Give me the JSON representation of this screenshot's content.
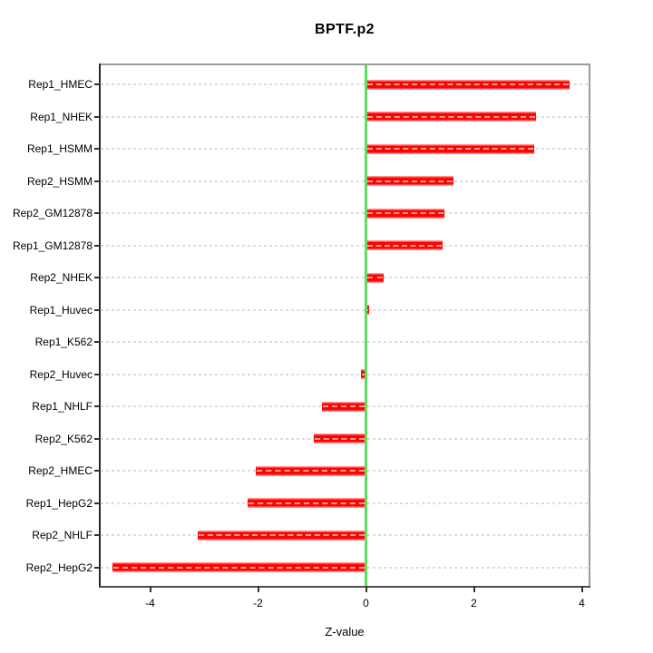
{
  "figure": {
    "title": "BPTF.p2",
    "xlabel": "Z-value"
  },
  "chart_data": {
    "type": "bar",
    "orientation": "horizontal",
    "title": "BPTF.p2",
    "xlabel": "Z-value",
    "ylabel": "",
    "legend": "none",
    "grid": "horizontal-dashed",
    "categories": [
      "Rep1_HMEC",
      "Rep1_NHEK",
      "Rep1_HSMM",
      "Rep2_HSMM",
      "Rep2_GM12878",
      "Rep1_GM12878",
      "Rep2_NHEK",
      "Rep1_Huvec",
      "Rep1_K562",
      "Rep2_Huvec",
      "Rep1_NHLF",
      "Rep2_K562",
      "Rep2_HMEC",
      "Rep1_HepG2",
      "Rep2_NHLF",
      "Rep2_HepG2"
    ],
    "values": [
      3.78,
      3.15,
      3.11,
      1.62,
      1.45,
      1.42,
      0.32,
      0.06,
      0.0,
      -0.1,
      -0.81,
      -0.96,
      -2.05,
      -2.2,
      -3.12,
      -4.7
    ],
    "x_ticks": [
      -4,
      -2,
      0,
      2,
      4
    ],
    "x_tick_labels": [
      "-4",
      "-2",
      "0",
      "2",
      "4"
    ],
    "xlim": [
      -4.91,
      4.13
    ],
    "zero_reference_line": 0,
    "colors": {
      "bar": "#ff0000",
      "bar_inner_dash": "#ffd2d2",
      "zero_line": "#5fdf5f",
      "grid_line": "#dcdcdc",
      "box_border": "#9c9c9c",
      "axis_tick": "#333333",
      "text": "#000000",
      "background": "#ffffff"
    }
  }
}
